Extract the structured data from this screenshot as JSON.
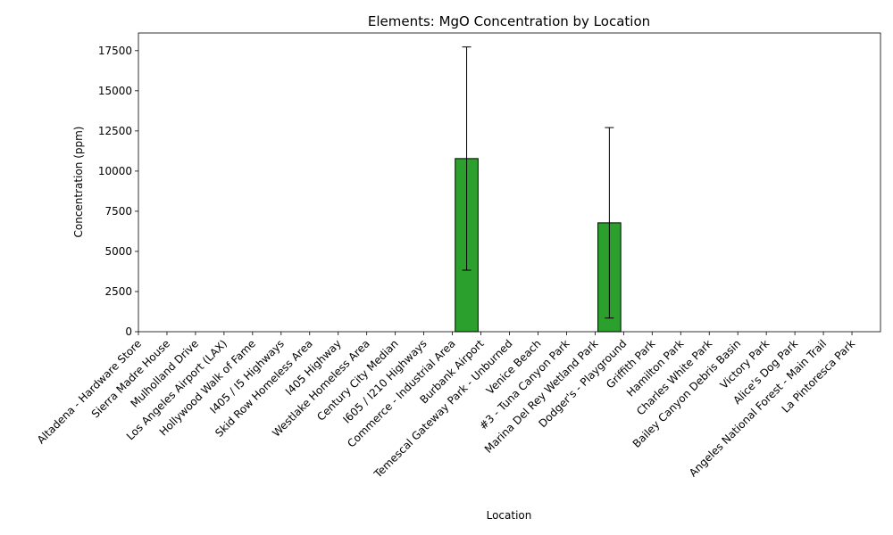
{
  "chart_data": {
    "type": "bar",
    "title": "Elements: MgO Concentration by Location",
    "xlabel": "Location",
    "ylabel": "Concentration (ppm)",
    "ylim": [
      0,
      18600
    ],
    "yticks": [
      0,
      2500,
      5000,
      7500,
      10000,
      12500,
      15000,
      17500
    ],
    "ytick_labels": [
      "0",
      "2500",
      "5000",
      "7500",
      "10000",
      "12500",
      "15000",
      "17500"
    ],
    "bar_color": "#2ca02c",
    "categories": [
      "Altadena - Hardware Store",
      "Sierra Madre House",
      "Mulholland Drive",
      "Los Angeles Airport (LAX)",
      "Hollywood Walk of Fame",
      "I405 / I5 Highways",
      "Skid Row Homeless Area",
      "I405 Highway",
      "Westlake Homeless Area",
      "Century City Median",
      "I605 / I210 Highways",
      "Commerce - Industrial Area",
      "Burbank Airport",
      "Temescal Gateway Park - Unburned",
      "Venice Beach",
      "#3 - Tuna Canyon Park",
      "Marina Del Rey Wetland Park",
      "Dodger's - Playground",
      "Griffith Park",
      "Hamilton Park",
      "Charles White Park",
      "Bailey Canyon Debris Basin",
      "Victory Park",
      "Alice's Dog Park",
      "Angeles National Forest - Main Trail",
      "La Pintoresca Park"
    ],
    "values": [
      0,
      0,
      0,
      0,
      0,
      0,
      0,
      0,
      0,
      0,
      0,
      10780,
      0,
      0,
      0,
      0,
      6780,
      0,
      0,
      0,
      0,
      0,
      0,
      0,
      0,
      0
    ],
    "errors": [
      0,
      0,
      0,
      0,
      0,
      0,
      0,
      0,
      0,
      0,
      0,
      6950,
      0,
      0,
      0,
      0,
      5930,
      0,
      0,
      0,
      0,
      0,
      0,
      0,
      0,
      0
    ]
  }
}
